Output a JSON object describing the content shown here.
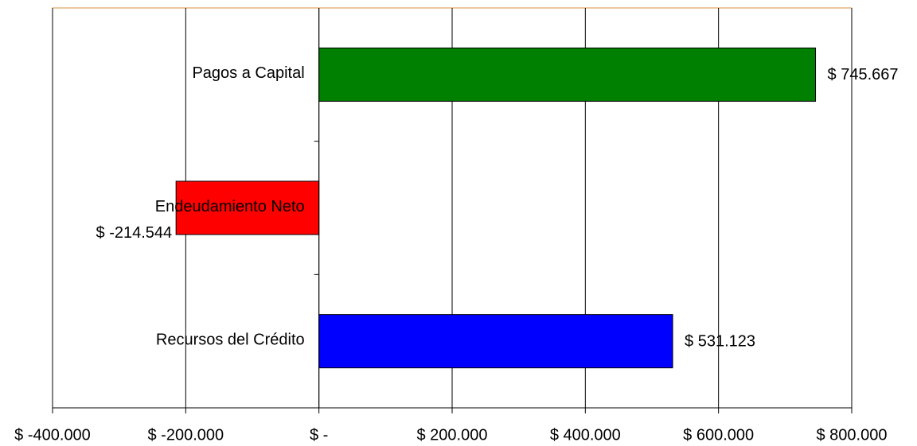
{
  "chart_data": {
    "type": "bar",
    "orientation": "horizontal",
    "categories": [
      "Pagos a Capital",
      "Endeudamiento Neto",
      "Recursos del Crédito"
    ],
    "values": [
      745667,
      -214544,
      531123
    ],
    "value_labels": [
      "$ 745.667",
      "$ -214.544",
      "$ 531.123"
    ],
    "colors": [
      "#008000",
      "#ff0000",
      "#0000ff"
    ],
    "xlim": [
      -400000,
      800000
    ],
    "xticks": [
      {
        "value": -400000,
        "label": "$ -400.000"
      },
      {
        "value": -200000,
        "label": "$ -200.000"
      },
      {
        "value": 0,
        "label": "$ -"
      },
      {
        "value": 200000,
        "label": "$ 200.000"
      },
      {
        "value": 400000,
        "label": "$ 400.000"
      },
      {
        "value": 600000,
        "label": "$ 600.000"
      },
      {
        "value": 800000,
        "label": "$ 800.000"
      }
    ],
    "grid": true
  }
}
